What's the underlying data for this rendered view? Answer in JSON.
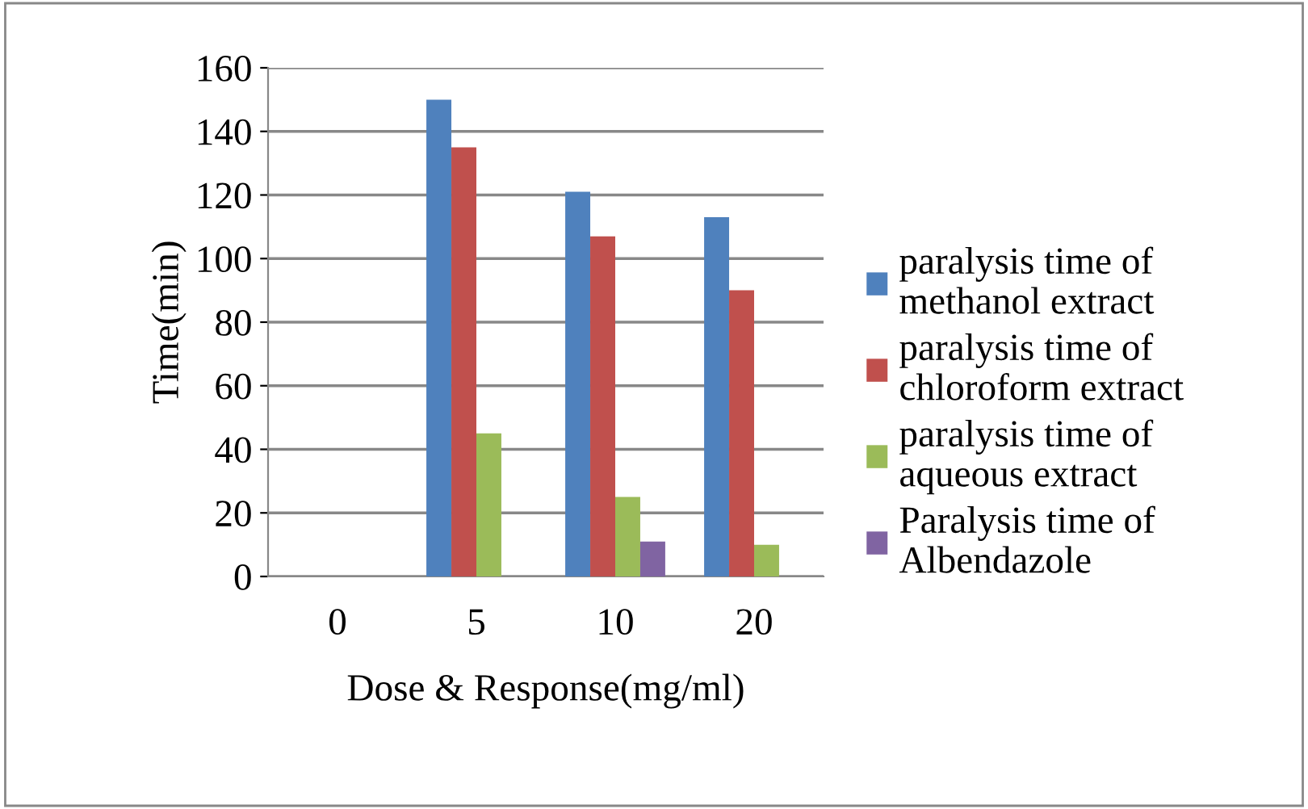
{
  "chart_data": {
    "type": "bar",
    "xlabel": "Dose & Response(mg/ml)",
    "ylabel": "Time(min)",
    "categories": [
      "0",
      "5",
      "10",
      "20"
    ],
    "series": [
      {
        "name": "paralysis time of\nmethanol extract",
        "color": "#4f81bd",
        "values": [
          null,
          150,
          121,
          113
        ]
      },
      {
        "name": "paralysis time of\nchloroform extract",
        "color": "#c0504d",
        "values": [
          null,
          135,
          107,
          90
        ]
      },
      {
        "name": "paralysis time of\naqueous extract",
        "color": "#9bbb59",
        "values": [
          null,
          45,
          25,
          10
        ]
      },
      {
        "name": "Paralysis time of\nAlbendazole",
        "color": "#8064a2",
        "values": [
          null,
          null,
          11,
          null
        ]
      }
    ],
    "ylim": [
      0,
      160
    ],
    "yticks": [
      0,
      20,
      40,
      60,
      80,
      100,
      120,
      140,
      160
    ],
    "grid": "y",
    "legend": "right"
  }
}
